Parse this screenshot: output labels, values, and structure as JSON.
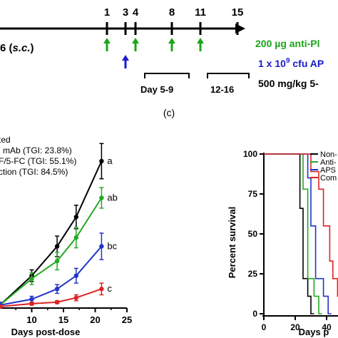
{
  "timeline": {
    "days": [
      "1",
      "3",
      "4",
      "8",
      "11",
      "15"
    ],
    "left_label_prefix": "6 (",
    "left_label_route": "s.c.",
    "left_label_suffix": ")",
    "green_text": "200 µg anti-Pl",
    "blue_text_prefix": "1 x 10",
    "blue_text_sup": "9",
    "blue_text_suffix": " cfu AP",
    "black_text": "500 mg/kg 5-",
    "period_1": "Day 5-9",
    "period_2": "12-16",
    "colors": {
      "green": "#1aa61a",
      "blue": "#1a1acc",
      "black": "#000000"
    }
  },
  "panel_c_label": "(c)",
  "chart_data": [
    {
      "type": "line",
      "xlabel": "Days post-dose",
      "ylabel": "",
      "xticks": [
        "10",
        "15",
        "20",
        "25"
      ],
      "xlim": [
        5,
        25
      ],
      "legend_texts": [
        "ted",
        "l mAb (TGI: 23.8%)",
        "F/5-FC (TGI: 55.1%)",
        "ction (TGI: 84.5%)"
      ],
      "legend_placement": "top-left",
      "x": [
        5,
        10,
        14,
        17,
        21
      ],
      "series": [
        {
          "name": "",
          "color": "#000000",
          "values": [
            0.02,
            0.22,
            0.42,
            0.62,
            1.0
          ],
          "err": [
            0.02,
            0.04,
            0.07,
            0.08,
            0.12
          ],
          "letter": "a"
        },
        {
          "name": "",
          "color": "#22aa22",
          "values": [
            0.02,
            0.2,
            0.32,
            0.48,
            0.75
          ],
          "err": [
            0.02,
            0.04,
            0.06,
            0.07,
            0.07
          ],
          "letter": "ab"
        },
        {
          "name": "",
          "color": "#2233cc",
          "values": [
            0.02,
            0.06,
            0.13,
            0.22,
            0.42
          ],
          "err": [
            0.02,
            0.02,
            0.03,
            0.05,
            0.09
          ],
          "letter": "bc"
        },
        {
          "name": "",
          "color": "#dd2222",
          "values": [
            0.01,
            0.03,
            0.04,
            0.07,
            0.13
          ],
          "err": [
            0.01,
            0.01,
            0.01,
            0.02,
            0.04
          ],
          "letter": "c"
        }
      ]
    },
    {
      "type": "line",
      "subtype": "step",
      "xlabel": "Days p",
      "ylabel": "Percent survival",
      "yticks": [
        "0",
        "25",
        "50",
        "75",
        "100"
      ],
      "ylim": [
        0,
        100
      ],
      "xticks": [
        "0",
        "20",
        "40"
      ],
      "xlim": [
        0,
        50
      ],
      "legend_texts": [
        "Non-",
        "Anti-",
        "APS",
        "Com"
      ],
      "legend_placement": "top-right",
      "series": [
        {
          "name": "Non-",
          "color": "#000000",
          "points": [
            [
              0,
              100
            ],
            [
              23,
              100
            ],
            [
              23,
              66
            ],
            [
              25,
              66
            ],
            [
              25,
              22
            ],
            [
              28,
              22
            ],
            [
              28,
              11
            ],
            [
              30,
              11
            ],
            [
              30,
              0
            ],
            [
              32,
              0
            ]
          ]
        },
        {
          "name": "Anti-",
          "color": "#22aa22",
          "points": [
            [
              0,
              100
            ],
            [
              25,
              100
            ],
            [
              25,
              78
            ],
            [
              28,
              78
            ],
            [
              28,
              22
            ],
            [
              32,
              22
            ],
            [
              32,
              11
            ],
            [
              35,
              11
            ],
            [
              35,
              0
            ],
            [
              37,
              0
            ]
          ]
        },
        {
          "name": "APS",
          "color": "#2233cc",
          "points": [
            [
              0,
              100
            ],
            [
              28,
              100
            ],
            [
              28,
              85
            ],
            [
              30,
              85
            ],
            [
              30,
              55
            ],
            [
              33,
              55
            ],
            [
              33,
              22
            ],
            [
              38,
              22
            ],
            [
              38,
              11
            ],
            [
              41,
              11
            ],
            [
              41,
              0
            ],
            [
              43,
              0
            ]
          ]
        },
        {
          "name": "Com",
          "color": "#dd2222",
          "points": [
            [
              0,
              100
            ],
            [
              30,
              100
            ],
            [
              30,
              89
            ],
            [
              35,
              89
            ],
            [
              35,
              78
            ],
            [
              38,
              78
            ],
            [
              38,
              55
            ],
            [
              42,
              55
            ],
            [
              42,
              33
            ],
            [
              44,
              33
            ],
            [
              44,
              22
            ],
            [
              47,
              22
            ],
            [
              47,
              11
            ],
            [
              50,
              11
            ]
          ]
        }
      ]
    }
  ]
}
